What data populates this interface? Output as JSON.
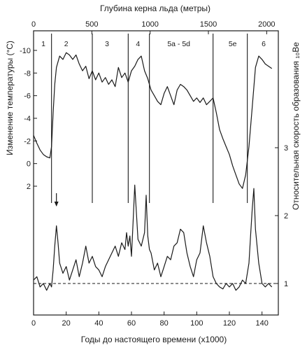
{
  "chart_data": {
    "type": "line",
    "bottom_axis": {
      "label": "Годы до настоящего времени (x1000)",
      "range": [
        0,
        150
      ],
      "ticks": [
        0,
        20,
        40,
        60,
        80,
        100,
        120,
        140
      ],
      "tick_labels": [
        "0",
        "20",
        "40",
        "60",
        "80",
        "100",
        "120",
        "140"
      ]
    },
    "top_axis": {
      "label": "Глубина керна льда (метры)",
      "range": [
        0,
        2100
      ],
      "ticks": [
        0,
        500,
        1000,
        1500,
        2000
      ],
      "tick_labels": [
        "0",
        "500",
        "1000",
        "1500",
        "2000"
      ]
    },
    "left_axis": {
      "label": "Изменение температуры (°C)",
      "range": [
        2,
        -10
      ],
      "ticks": [
        -10,
        -8,
        -6,
        -4,
        -2,
        0,
        2
      ],
      "tick_labels": [
        "-10",
        "-8",
        "-6",
        "-4",
        "-2",
        "0",
        "2"
      ]
    },
    "right_axis": {
      "label": "Относительная скорость образования ₁₀Be",
      "range": [
        0.6,
        3.7
      ],
      "ticks": [
        1,
        2,
        3
      ],
      "tick_labels": [
        "1",
        "2",
        "3"
      ]
    },
    "stages": [
      {
        "label": "1",
        "x": 6
      },
      {
        "label": "2",
        "x": 20
      },
      {
        "label": "3",
        "x": 45
      },
      {
        "label": "4",
        "x": 64
      },
      {
        "label": "5a - 5d",
        "x": 89
      },
      {
        "label": "5e",
        "x": 122
      },
      {
        "label": "6",
        "x": 141
      }
    ],
    "stage_boundaries": [
      11,
      36,
      58,
      71,
      110,
      131
    ],
    "arrow_x": 14,
    "baseline_value": 1,
    "series": [
      {
        "role": "temperature",
        "axis": "left",
        "x": [
          0,
          2,
          4,
          6,
          8,
          10,
          11,
          12,
          13,
          14,
          16,
          18,
          20,
          22,
          24,
          26,
          28,
          30,
          32,
          34,
          36,
          38,
          40,
          42,
          44,
          46,
          48,
          50,
          52,
          54,
          56,
          58,
          60,
          62,
          64,
          66,
          68,
          70,
          72,
          74,
          76,
          78,
          80,
          82,
          84,
          86,
          88,
          90,
          92,
          94,
          96,
          98,
          100,
          102,
          104,
          106,
          108,
          110,
          112,
          114,
          116,
          118,
          120,
          122,
          124,
          126,
          128,
          130,
          132,
          134,
          136,
          138,
          140,
          142,
          144,
          146
        ],
        "values": [
          -2.5,
          -1.8,
          -1.2,
          -0.8,
          -0.6,
          -0.5,
          -1.5,
          -4.5,
          -7,
          -8.5,
          -9.5,
          -9.2,
          -9.8,
          -9.6,
          -9.2,
          -9.6,
          -8.8,
          -8.2,
          -8.6,
          -7.5,
          -8.2,
          -7.4,
          -8,
          -7.2,
          -7.6,
          -7,
          -7.4,
          -6.8,
          -8.5,
          -7.6,
          -8,
          -7.2,
          -8.2,
          -8.6,
          -9.2,
          -9.5,
          -8.2,
          -7.5,
          -6.5,
          -6,
          -5.5,
          -5.2,
          -6.2,
          -6.8,
          -6,
          -5.2,
          -6.5,
          -7,
          -6.8,
          -6.5,
          -6,
          -5.5,
          -5.8,
          -5.4,
          -5.8,
          -5.2,
          -5.5,
          -5.8,
          -4.5,
          -3,
          -2.2,
          -1.5,
          -0.8,
          0.2,
          1,
          1.8,
          2.2,
          1,
          -1.5,
          -5,
          -8.5,
          -9.5,
          -9.2,
          -8.8,
          -8.6,
          -8.4
        ]
      },
      {
        "role": "beryllium-10",
        "axis": "right",
        "x": [
          0,
          2,
          4,
          6,
          8,
          10,
          11,
          12,
          13,
          14,
          15,
          16,
          18,
          20,
          22,
          24,
          26,
          28,
          30,
          32,
          34,
          36,
          38,
          40,
          42,
          44,
          46,
          48,
          50,
          52,
          54,
          56,
          57,
          58,
          59,
          60,
          61,
          62,
          64,
          66,
          68,
          69,
          70,
          71,
          72,
          74,
          76,
          78,
          80,
          82,
          84,
          86,
          88,
          90,
          92,
          94,
          96,
          98,
          100,
          102,
          104,
          106,
          108,
          110,
          112,
          114,
          116,
          118,
          120,
          122,
          124,
          126,
          128,
          130,
          132,
          133,
          134,
          135,
          136,
          138,
          140,
          142,
          144,
          146
        ],
        "values": [
          1.05,
          1.1,
          0.95,
          1.0,
          0.9,
          1.0,
          0.95,
          1.2,
          1.55,
          1.85,
          1.6,
          1.3,
          1.15,
          1.25,
          1.05,
          1.2,
          1.35,
          1.1,
          1.3,
          1.55,
          1.3,
          1.4,
          1.25,
          1.2,
          1.1,
          1.25,
          1.35,
          1.45,
          1.55,
          1.4,
          1.6,
          1.5,
          1.75,
          1.55,
          1.7,
          1.4,
          1.9,
          2.45,
          1.65,
          1.55,
          1.75,
          2.3,
          1.7,
          1.5,
          1.45,
          1.2,
          1.3,
          1.1,
          1.25,
          1.4,
          1.35,
          1.55,
          1.6,
          1.8,
          1.75,
          1.45,
          1.25,
          1.1,
          1.35,
          1.45,
          1.85,
          1.6,
          1.4,
          1.1,
          1.0,
          0.95,
          0.92,
          1.0,
          0.95,
          1.0,
          0.9,
          0.95,
          1.05,
          1.0,
          1.3,
          1.7,
          2.1,
          2.4,
          1.8,
          1.3,
          1.0,
          0.95,
          1.0,
          0.95
        ]
      }
    ]
  }
}
